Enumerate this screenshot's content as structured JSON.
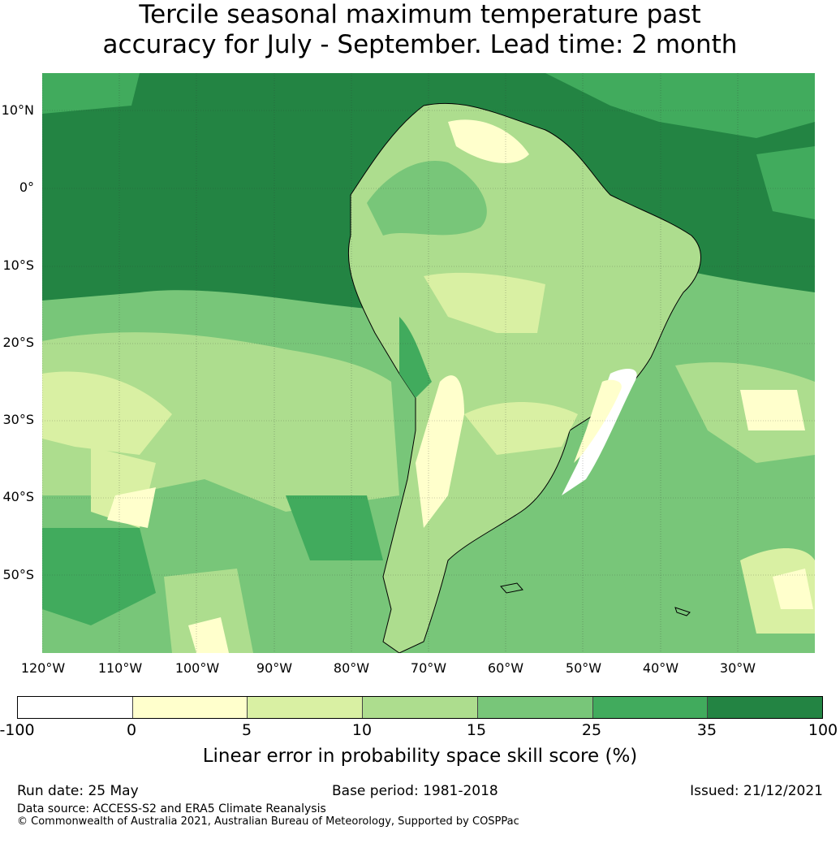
{
  "title_line1": "Tercile seasonal maximum temperature past",
  "title_line2": "accuracy for July - September. Lead time: 2 month",
  "lat_labels": [
    "10°N",
    "0°",
    "10°S",
    "20°S",
    "30°S",
    "40°S",
    "50°S"
  ],
  "lon_labels": [
    "120°W",
    "110°W",
    "100°W",
    "90°W",
    "80°W",
    "70°W",
    "60°W",
    "50°W",
    "40°W",
    "30°W"
  ],
  "colorbar": {
    "colors": [
      "#ffffff",
      "#ffffcc",
      "#d9f0a3",
      "#addd8e",
      "#78c679",
      "#41ab5d",
      "#238443"
    ],
    "ticks": [
      "-100",
      "0",
      "5",
      "10",
      "15",
      "25",
      "35",
      "100"
    ],
    "label": "Linear error in probability space skill score (%)"
  },
  "footer": {
    "run_date": "Run date: 25 May",
    "base_period": "Base period: 1981-2018",
    "issued": "Issued: 21/12/2021",
    "data_source": "Data source: ACCESS-S2 and ERA5 Climate Reanalysis",
    "copyright": "© Commonwealth of Australia 2021, Australian Bureau of Meteorology, Supported by COSPPac"
  }
}
